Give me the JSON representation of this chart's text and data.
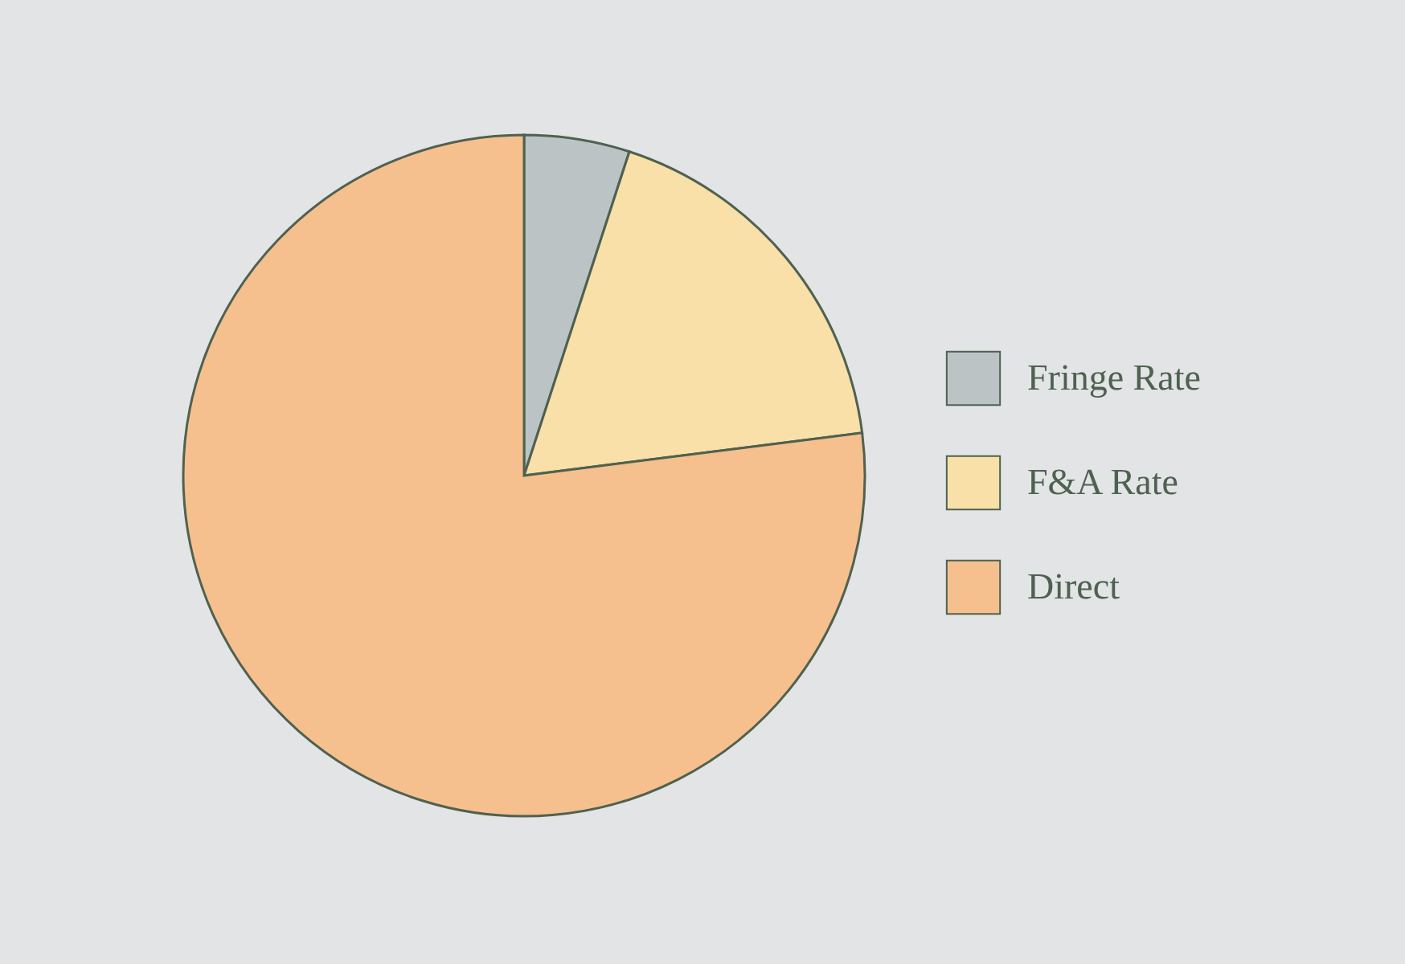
{
  "chart_data": {
    "type": "pie",
    "categories": [
      "Fringe Rate",
      "F&A Rate",
      "Direct"
    ],
    "values": [
      5,
      18,
      77
    ],
    "colors": [
      "#bcc3c5",
      "#f8e0a8",
      "#f5c08e"
    ],
    "legend": "right"
  }
}
